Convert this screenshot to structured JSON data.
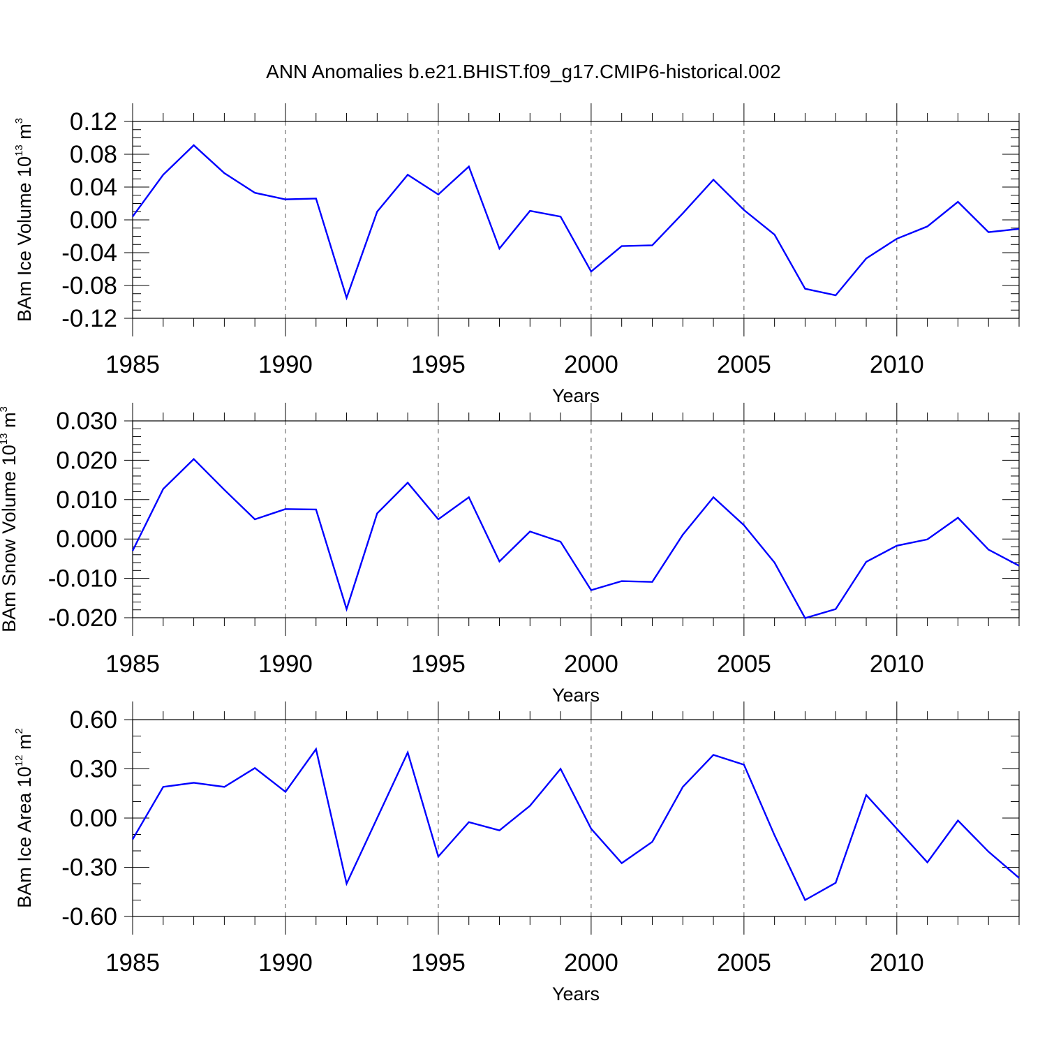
{
  "title": "ANN Anomalies b.e21.BHIST.f09_g17.CMIP6-historical.002",
  "colors": {
    "series": "#0000ff",
    "axes": "#000000",
    "grid": "#555555"
  },
  "chart_data": [
    {
      "type": "line",
      "ylabel": {
        "text": "BAm Ice Volume 10",
        "exp": "13",
        "unit": " m",
        "unit_exp": "3"
      },
      "xlabel": "Years",
      "xlim": [
        1985,
        2014
      ],
      "ylim": [
        -0.12,
        0.12
      ],
      "xticks": [
        1985,
        1990,
        1995,
        2000,
        2005,
        2010
      ],
      "xtick_labels": [
        "1985",
        "1990",
        "1995",
        "2000",
        "2005",
        "2010"
      ],
      "yticks": [
        0.12,
        0.08,
        0.04,
        0.0,
        -0.04,
        -0.08,
        -0.12
      ],
      "ytick_labels": [
        "0.12",
        "0.08",
        "0.04",
        "0.00",
        "-0.04",
        "-0.08",
        "-0.12"
      ],
      "yminor_step": 0.01,
      "grid": "vertical dashed at major x ticks",
      "x": [
        1985,
        1986,
        1987,
        1988,
        1989,
        1990,
        1991,
        1992,
        1993,
        1994,
        1995,
        1996,
        1997,
        1998,
        1999,
        2000,
        2001,
        2002,
        2003,
        2004,
        2005,
        2006,
        2007,
        2008,
        2009,
        2010,
        2011,
        2012,
        2013,
        2014
      ],
      "series": [
        {
          "name": "BAm Ice Volume",
          "values": [
            0.004,
            0.055,
            0.091,
            0.057,
            0.033,
            0.025,
            0.026,
            -0.095,
            0.01,
            0.055,
            0.031,
            0.065,
            -0.035,
            0.011,
            0.004,
            -0.063,
            -0.032,
            -0.031,
            0.008,
            0.049,
            0.012,
            -0.018,
            -0.084,
            -0.092,
            -0.047,
            -0.023,
            -0.008,
            0.022,
            -0.015,
            -0.011
          ]
        }
      ]
    },
    {
      "type": "line",
      "ylabel": {
        "text": "BAm Snow Volume 10",
        "exp": "13",
        "unit": " m",
        "unit_exp": "3"
      },
      "xlabel": "Years",
      "xlim": [
        1985,
        2014
      ],
      "ylim": [
        -0.02,
        0.03
      ],
      "xticks": [
        1985,
        1990,
        1995,
        2000,
        2005,
        2010
      ],
      "xtick_labels": [
        "1985",
        "1990",
        "1995",
        "2000",
        "2005",
        "2010"
      ],
      "yticks": [
        0.03,
        0.02,
        0.01,
        0.0,
        -0.01,
        -0.02
      ],
      "ytick_labels": [
        "0.030",
        "0.020",
        "0.010",
        "0.000",
        "-0.010",
        "-0.020"
      ],
      "yminor_step": 0.002,
      "grid": "vertical dashed at major x ticks",
      "x": [
        1985,
        1986,
        1987,
        1988,
        1989,
        1990,
        1991,
        1992,
        1993,
        1994,
        1995,
        1996,
        1997,
        1998,
        1999,
        2000,
        2001,
        2002,
        2003,
        2004,
        2005,
        2006,
        2007,
        2008,
        2009,
        2010,
        2011,
        2012,
        2013,
        2014
      ],
      "series": [
        {
          "name": "BAm Snow Volume",
          "values": [
            -0.003,
            0.0127,
            0.0203,
            0.0125,
            0.005,
            0.0076,
            0.0075,
            -0.0178,
            0.0065,
            0.0143,
            0.005,
            0.0106,
            -0.0057,
            0.0019,
            -0.0007,
            -0.013,
            -0.0107,
            -0.0109,
            0.0011,
            0.0106,
            0.0035,
            -0.006,
            -0.0201,
            -0.0178,
            -0.0058,
            -0.0017,
            -0.0001,
            0.0054,
            -0.0027,
            -0.0068
          ]
        }
      ]
    },
    {
      "type": "line",
      "ylabel": {
        "text": "BAm Ice Area 10",
        "exp": "12",
        "unit": " m",
        "unit_exp": "2"
      },
      "xlabel": "Years",
      "xlim": [
        1985,
        2014
      ],
      "ylim": [
        -0.6,
        0.6
      ],
      "xticks": [
        1985,
        1990,
        1995,
        2000,
        2005,
        2010
      ],
      "xtick_labels": [
        "1985",
        "1990",
        "1995",
        "2000",
        "2005",
        "2010"
      ],
      "yticks": [
        0.6,
        0.3,
        0.0,
        -0.3,
        -0.6
      ],
      "ytick_labels": [
        "0.60",
        "0.30",
        "0.00",
        "-0.30",
        "-0.60"
      ],
      "yminor_step": 0.1,
      "grid": "vertical dashed at major x ticks",
      "x": [
        1985,
        1986,
        1987,
        1988,
        1989,
        1990,
        1991,
        1992,
        1993,
        1994,
        1995,
        1996,
        1997,
        1998,
        1999,
        2000,
        2001,
        2002,
        2003,
        2004,
        2005,
        2006,
        2007,
        2008,
        2009,
        2010,
        2011,
        2012,
        2013,
        2014
      ],
      "series": [
        {
          "name": "BAm Ice Area",
          "values": [
            -0.13,
            0.19,
            0.215,
            0.19,
            0.305,
            0.16,
            0.42,
            -0.4,
            0.0,
            0.4,
            -0.235,
            -0.025,
            -0.075,
            0.075,
            0.3,
            -0.065,
            -0.275,
            -0.145,
            0.19,
            0.385,
            0.325,
            -0.105,
            -0.5,
            -0.395,
            0.14,
            -0.065,
            -0.27,
            -0.015,
            -0.205,
            -0.365
          ]
        }
      ]
    }
  ]
}
